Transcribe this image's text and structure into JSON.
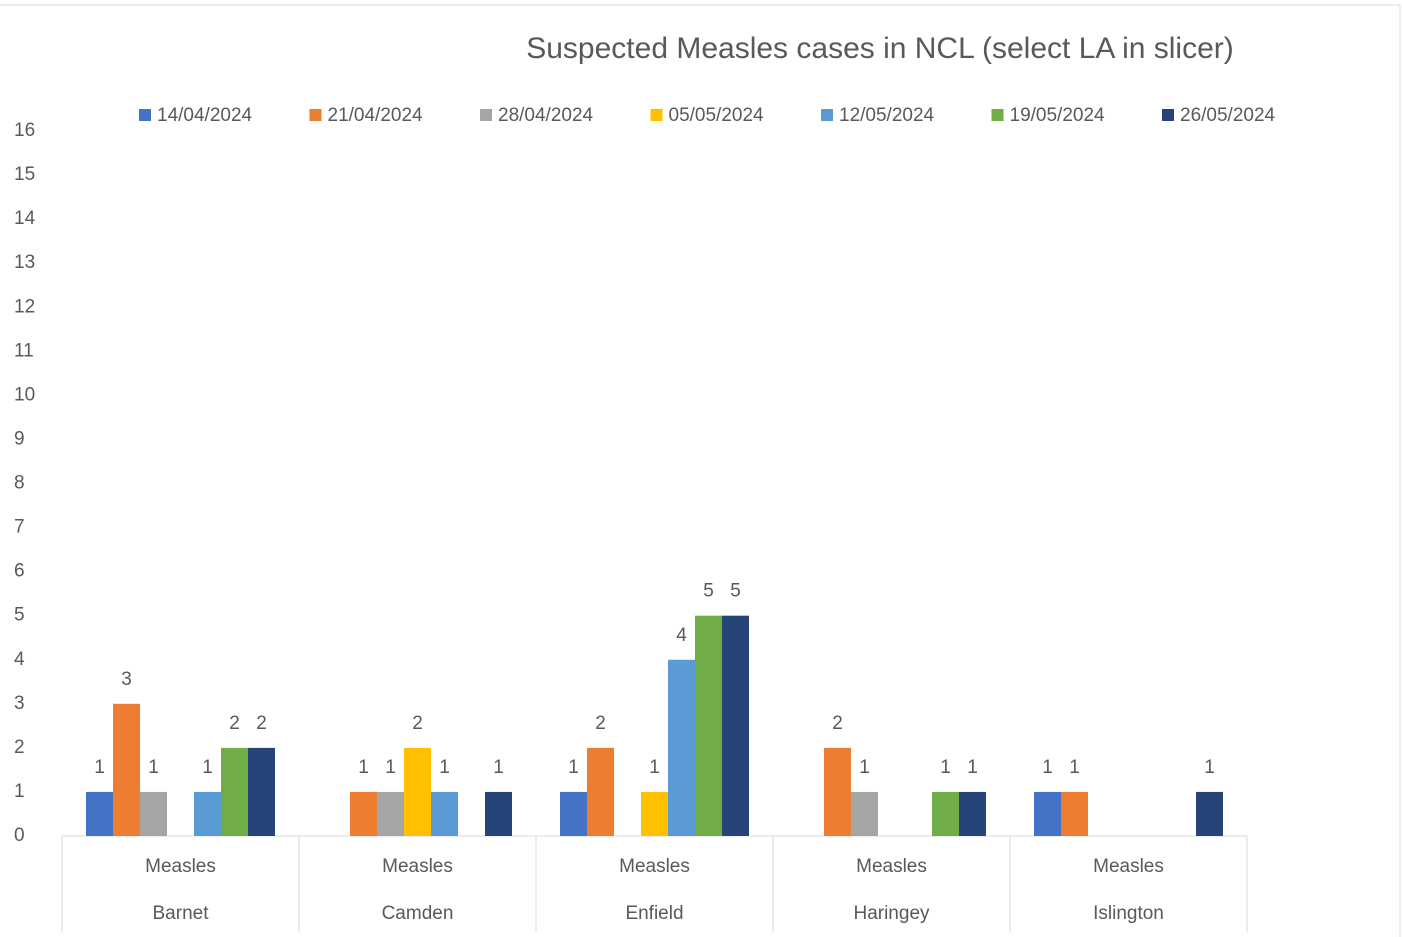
{
  "chart_data": {
    "type": "bar",
    "title": "Suspected Measles cases in NCL (select LA in slicer)",
    "categories": [
      [
        "Measles",
        "Barnet"
      ],
      [
        "Measles",
        "Camden"
      ],
      [
        "Measles",
        "Enfield"
      ],
      [
        "Measles",
        "Haringey"
      ],
      [
        "Measles",
        "Islington"
      ]
    ],
    "series": [
      {
        "name": "14/04/2024",
        "color": "#4472c4",
        "values": [
          1,
          null,
          1,
          null,
          1
        ]
      },
      {
        "name": "21/04/2024",
        "color": "#ed7d31",
        "values": [
          3,
          1,
          2,
          2,
          1
        ]
      },
      {
        "name": "28/04/2024",
        "color": "#a5a5a5",
        "values": [
          1,
          1,
          null,
          1,
          null
        ]
      },
      {
        "name": "05/05/2024",
        "color": "#ffc000",
        "values": [
          null,
          2,
          1,
          null,
          null
        ]
      },
      {
        "name": "12/05/2024",
        "color": "#5b9bd5",
        "values": [
          1,
          1,
          4,
          null,
          null
        ]
      },
      {
        "name": "19/05/2024",
        "color": "#70ad47",
        "values": [
          2,
          null,
          5,
          1,
          null
        ]
      },
      {
        "name": "26/05/2024",
        "color": "#264478",
        "values": [
          2,
          1,
          5,
          1,
          1
        ]
      }
    ],
    "ylim": [
      0,
      16
    ],
    "yticks": [
      0,
      1,
      2,
      3,
      4,
      5,
      6,
      7,
      8,
      9,
      10,
      11,
      12,
      13,
      14,
      15,
      16
    ],
    "grid": false,
    "legend": "top"
  }
}
